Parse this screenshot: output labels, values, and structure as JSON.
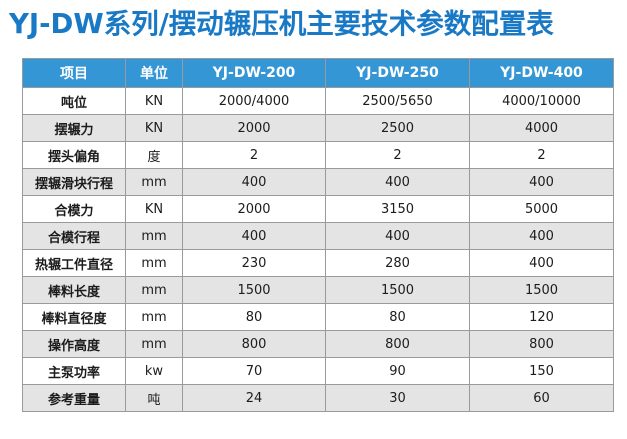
{
  "page_title": "YJ-DW系列/摆动辗压机主要技术参数配置表",
  "table": {
    "headers": [
      "项目",
      "单位",
      "YJ-DW-200",
      "YJ-DW-250",
      "YJ-DW-400"
    ],
    "rows": [
      [
        "吨位",
        "KN",
        "2000/4000",
        "2500/5650",
        "4000/10000"
      ],
      [
        "摆辗力",
        "KN",
        "2000",
        "2500",
        "4000"
      ],
      [
        "摆头偏角",
        "度",
        "2",
        "2",
        "2"
      ],
      [
        "摆辗滑块行程",
        "mm",
        "400",
        "400",
        "400"
      ],
      [
        "合模力",
        "KN",
        "2000",
        "3150",
        "5000"
      ],
      [
        "合模行程",
        "mm",
        "400",
        "400",
        "400"
      ],
      [
        "热辗工件直径",
        "mm",
        "230",
        "280",
        "400"
      ],
      [
        "棒料长度",
        "mm",
        "1500",
        "1500",
        "1500"
      ],
      [
        "棒料直径度",
        "mm",
        "80",
        "80",
        "120"
      ],
      [
        "操作高度",
        "mm",
        "800",
        "800",
        "800"
      ],
      [
        "主泵功率",
        "kw",
        "70",
        "90",
        "150"
      ],
      [
        "参考重量",
        "吨",
        "24",
        "30",
        "60"
      ]
    ]
  },
  "colors": {
    "title": "#1a79c5",
    "header_background": "#3596d6",
    "header_text": "#ffffff",
    "shaded_row": "#e4e4e4",
    "border": "#9a9a9a"
  }
}
